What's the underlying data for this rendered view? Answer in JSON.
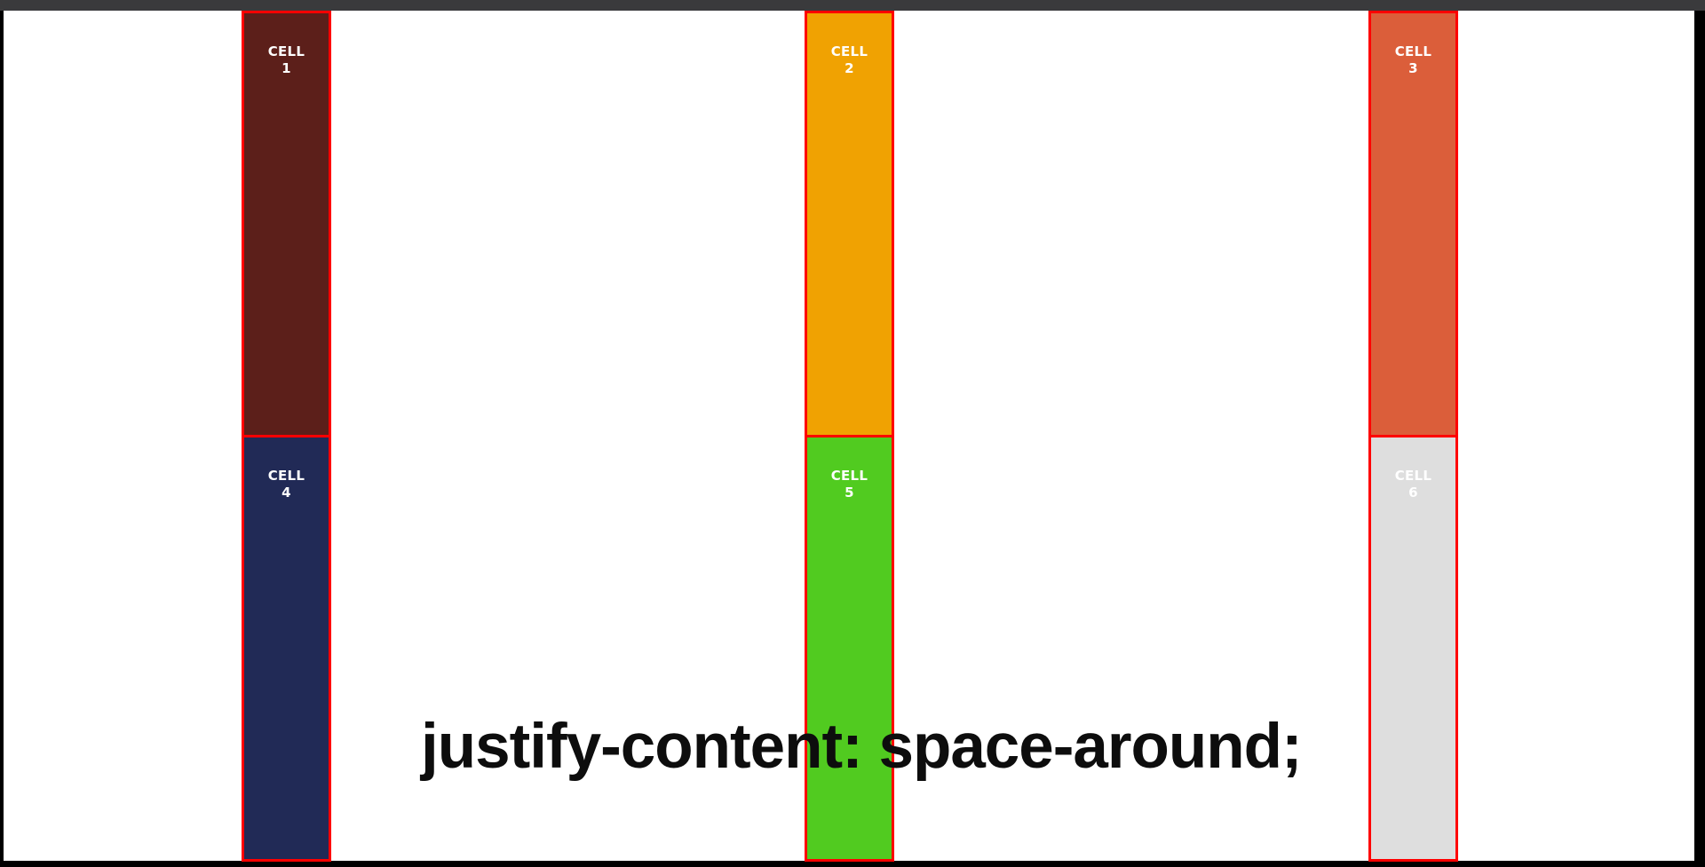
{
  "caption": "justify-content: space-around;",
  "cells": [
    {
      "label": "CELL",
      "number": "1",
      "color": "#5c1f1a"
    },
    {
      "label": "CELL",
      "number": "2",
      "color": "#f0a202"
    },
    {
      "label": "CELL",
      "number": "3",
      "color": "#db5e3a"
    },
    {
      "label": "CELL",
      "number": "4",
      "color": "#212a56"
    },
    {
      "label": "CELL",
      "number": "5",
      "color": "#51cb20"
    },
    {
      "label": "CELL",
      "number": "6",
      "color": "#dedede"
    }
  ],
  "colors": {
    "cell_border": "#ff0000",
    "stage_background": "#ffffff",
    "frame": "#000000"
  }
}
